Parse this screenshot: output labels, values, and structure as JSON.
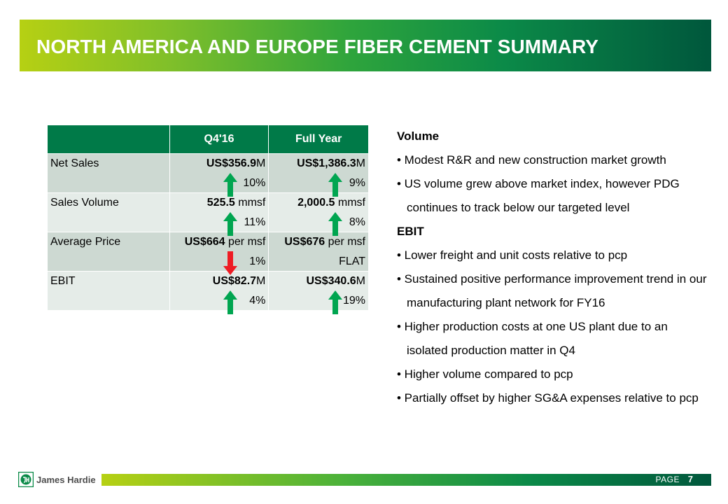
{
  "header": {
    "title": "NORTH AMERICA AND EUROPE FIBER CEMENT SUMMARY"
  },
  "table": {
    "columns": [
      "",
      "Q4'16",
      "Full Year"
    ],
    "rows": [
      {
        "label": "Net Sales",
        "q4": {
          "bold": "US$356.9",
          "rest": "M",
          "change": "10%",
          "direction": "up"
        },
        "fy": {
          "bold": "US$1,386.3",
          "rest": "M",
          "change": "9%",
          "direction": "up"
        }
      },
      {
        "label": "Sales Volume",
        "q4": {
          "bold": "525.5",
          "rest": " mmsf",
          "change": "11%",
          "direction": "up"
        },
        "fy": {
          "bold": "2,000.5",
          "rest": " mmsf",
          "change": "8%",
          "direction": "up"
        }
      },
      {
        "label": "Average Price",
        "q4": {
          "bold": "US$664",
          "rest": " per msf",
          "change": "1%",
          "direction": "down"
        },
        "fy": {
          "bold": "US$676",
          "rest": " per msf",
          "change": "FLAT",
          "direction": "none"
        }
      },
      {
        "label": "EBIT",
        "q4": {
          "bold": "US$82.7",
          "rest": "M",
          "change": "4%",
          "direction": "up"
        },
        "fy": {
          "bold": "US$340.6",
          "rest": "M",
          "change": "19%",
          "direction": "up"
        }
      }
    ]
  },
  "commentary": {
    "volume_heading": "Volume",
    "volume_bullets": [
      "• Modest R&R and new construction market growth",
      "• US volume grew above market index, however PDG continues to track below our targeted level"
    ],
    "ebit_heading": "EBIT",
    "ebit_bullets": [
      "• Lower freight and unit costs relative to pcp",
      "• Sustained positive performance improvement trend in our manufacturing plant network for FY16",
      "• Higher production costs at one US plant due to an isolated production matter in Q4",
      "• Higher volume compared to pcp",
      "• Partially offset by higher SG&A expenses relative to pcp"
    ]
  },
  "footer": {
    "logo_text": "James Hardie",
    "page_label": "PAGE",
    "page_number": "7"
  },
  "colors": {
    "header_green": "#007a48",
    "arrow_up": "#00a550",
    "arrow_down": "#ee1c24",
    "row_a": "#cdd9d2",
    "row_b": "#e5ece8"
  }
}
